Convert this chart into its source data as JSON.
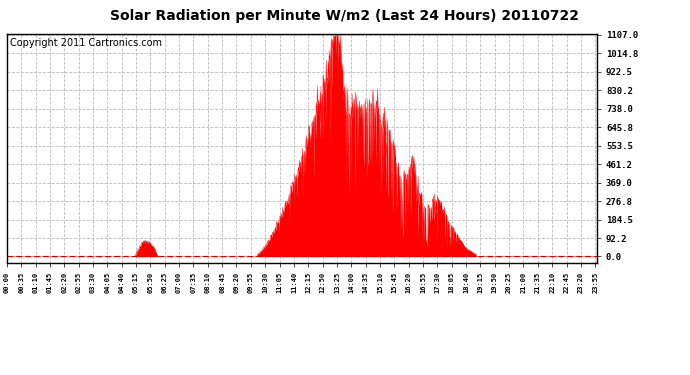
{
  "title": "Solar Radiation per Minute W/m2 (Last 24 Hours) 20110722",
  "copyright": "Copyright 2011 Cartronics.com",
  "yticks": [
    0.0,
    92.2,
    184.5,
    276.8,
    369.0,
    461.2,
    553.5,
    645.8,
    738.0,
    830.2,
    922.5,
    1014.8,
    1107.0
  ],
  "ymax": 1107.0,
  "ymin": 0.0,
  "fill_color": "#ff0000",
  "line_color": "#ff0000",
  "dashed_line_color": "#cc0000",
  "bg_color": "#ffffff",
  "grid_color": "#bbbbbb",
  "border_color": "#000000",
  "title_fontsize": 10,
  "copyright_fontsize": 7
}
